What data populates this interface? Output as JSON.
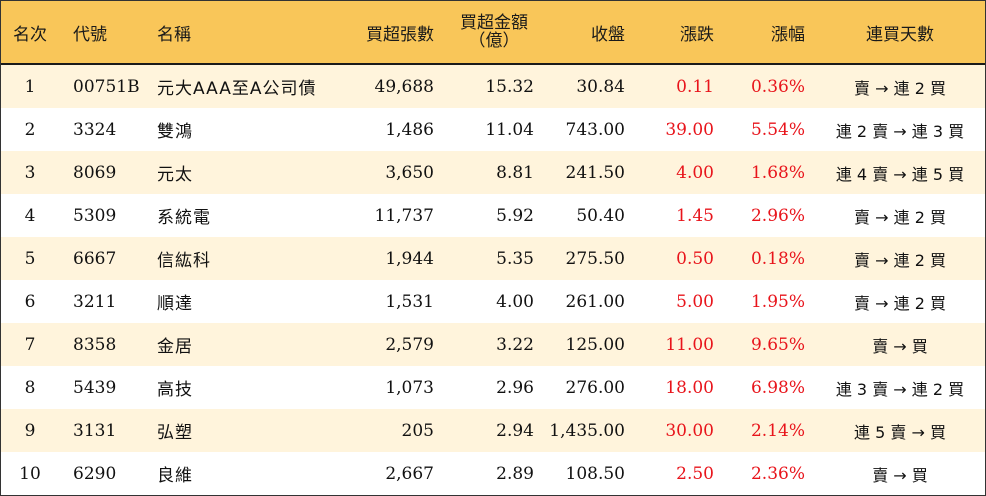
{
  "headers": {
    "rank": "名次",
    "code": "代號",
    "name": "名稱",
    "shares": "買超張數",
    "amount_line1": "買超金額",
    "amount_line2": "（億）",
    "close": "收盤",
    "change": "漲跌",
    "pct": "漲幅",
    "streak": "連買天數"
  },
  "rows": [
    {
      "rank": "1",
      "code": "00751B",
      "name": "元大AAA至A公司債",
      "shares": "49,688",
      "amount": "15.32",
      "close": "30.84",
      "change": "0.11",
      "pct": "0.36%",
      "streak": "賣 → 連 2 買"
    },
    {
      "rank": "2",
      "code": "3324",
      "name": "雙鴻",
      "shares": "1,486",
      "amount": "11.04",
      "close": "743.00",
      "change": "39.00",
      "pct": "5.54%",
      "streak": "連 2 賣 → 連 3 買"
    },
    {
      "rank": "3",
      "code": "8069",
      "name": "元太",
      "shares": "3,650",
      "amount": "8.81",
      "close": "241.50",
      "change": "4.00",
      "pct": "1.68%",
      "streak": "連 4 賣 → 連 5 買"
    },
    {
      "rank": "4",
      "code": "5309",
      "name": "系統電",
      "shares": "11,737",
      "amount": "5.92",
      "close": "50.40",
      "change": "1.45",
      "pct": "2.96%",
      "streak": "賣 → 連 2 買"
    },
    {
      "rank": "5",
      "code": "6667",
      "name": "信紘科",
      "shares": "1,944",
      "amount": "5.35",
      "close": "275.50",
      "change": "0.50",
      "pct": "0.18%",
      "streak": "賣 → 連 2 買"
    },
    {
      "rank": "6",
      "code": "3211",
      "name": "順達",
      "shares": "1,531",
      "amount": "4.00",
      "close": "261.00",
      "change": "5.00",
      "pct": "1.95%",
      "streak": "賣 → 連 2 買"
    },
    {
      "rank": "7",
      "code": "8358",
      "name": "金居",
      "shares": "2,579",
      "amount": "3.22",
      "close": "125.00",
      "change": "11.00",
      "pct": "9.65%",
      "streak": "賣 → 買"
    },
    {
      "rank": "8",
      "code": "5439",
      "name": "高技",
      "shares": "1,073",
      "amount": "2.96",
      "close": "276.00",
      "change": "18.00",
      "pct": "6.98%",
      "streak": "連 3 賣 → 連 2 買"
    },
    {
      "rank": "9",
      "code": "3131",
      "name": "弘塑",
      "shares": "205",
      "amount": "2.94",
      "close": "1,435.00",
      "change": "30.00",
      "pct": "2.14%",
      "streak": "連 5 賣 → 買"
    },
    {
      "rank": "10",
      "code": "6290",
      "name": "良維",
      "shares": "2,667",
      "amount": "2.89",
      "close": "108.50",
      "change": "2.50",
      "pct": "2.36%",
      "streak": "賣 → 買"
    }
  ],
  "colors": {
    "header_bg": "#f9c659",
    "alt_row_bg": "#fff4dc",
    "gain": "#e8141b"
  }
}
